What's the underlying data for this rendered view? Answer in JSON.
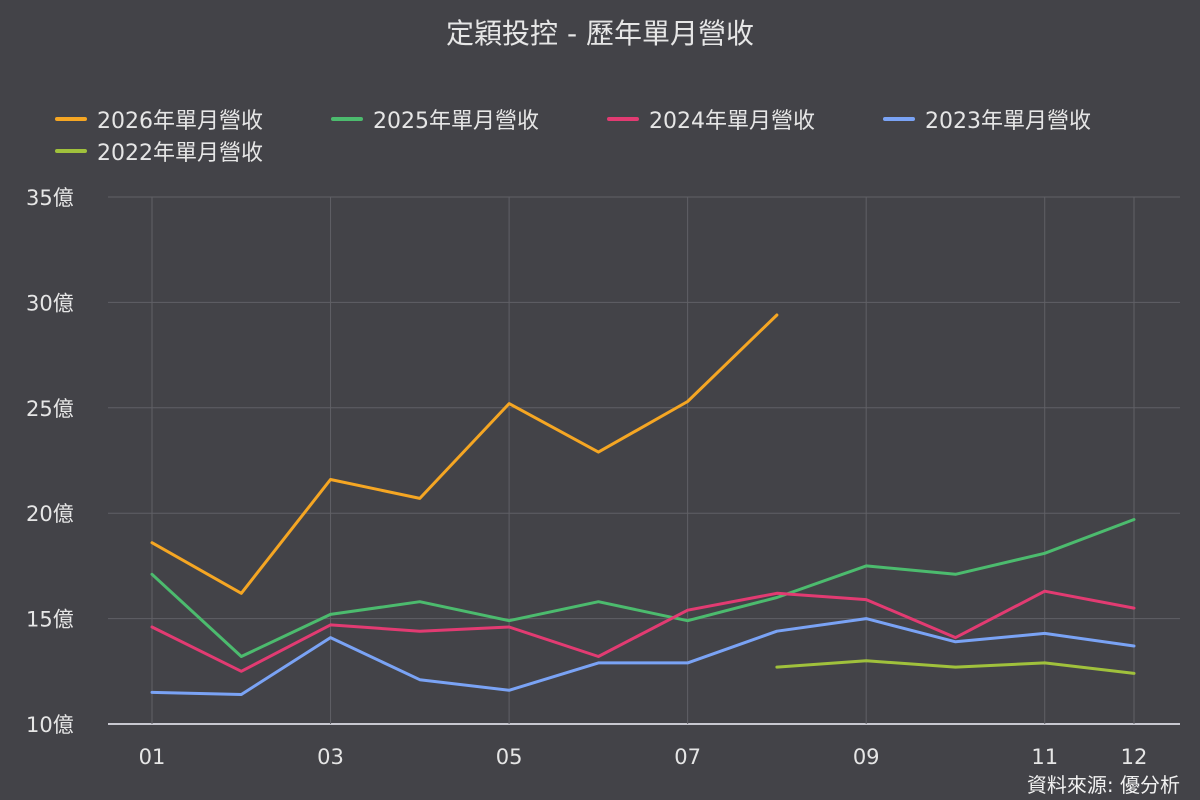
{
  "chart_data": {
    "type": "line",
    "title": "定穎投控 - 歷年單月營收",
    "categories": [
      "01",
      "02",
      "03",
      "04",
      "05",
      "06",
      "07",
      "08",
      "09",
      "10",
      "11",
      "12"
    ],
    "x_tick_labels": [
      "01",
      "03",
      "05",
      "07",
      "09",
      "11",
      "12"
    ],
    "ylim": [
      10,
      35
    ],
    "y_ticks": [
      10,
      15,
      20,
      25,
      30,
      35
    ],
    "y_tick_suffix": "億",
    "grid": true,
    "legend_position": "top",
    "series": [
      {
        "name": "2026年單月營收",
        "color": "#f5a623",
        "values": [
          18.6,
          16.2,
          21.6,
          20.7,
          25.2,
          22.9,
          25.3,
          29.4,
          null,
          null,
          null,
          null
        ]
      },
      {
        "name": "2025年單月營收",
        "color": "#4cbb6e",
        "values": [
          17.1,
          13.2,
          15.2,
          15.8,
          14.9,
          15.8,
          14.9,
          16.0,
          17.5,
          17.1,
          18.1,
          19.7
        ]
      },
      {
        "name": "2024年單月營收",
        "color": "#e23b72",
        "values": [
          14.6,
          12.5,
          14.7,
          14.4,
          14.6,
          13.2,
          15.4,
          16.2,
          15.9,
          14.1,
          16.3,
          15.5
        ]
      },
      {
        "name": "2023年單月營收",
        "color": "#7aa3f5",
        "values": [
          11.5,
          11.4,
          14.1,
          12.1,
          11.6,
          12.9,
          12.9,
          14.4,
          15.0,
          13.9,
          14.3,
          13.7
        ]
      },
      {
        "name": "2022年單月營收",
        "color": "#a0c13c",
        "values": [
          null,
          null,
          null,
          null,
          null,
          null,
          null,
          12.7,
          13.0,
          12.7,
          12.9,
          12.4
        ]
      }
    ]
  },
  "footer": {
    "source": "資料來源: 優分析"
  }
}
